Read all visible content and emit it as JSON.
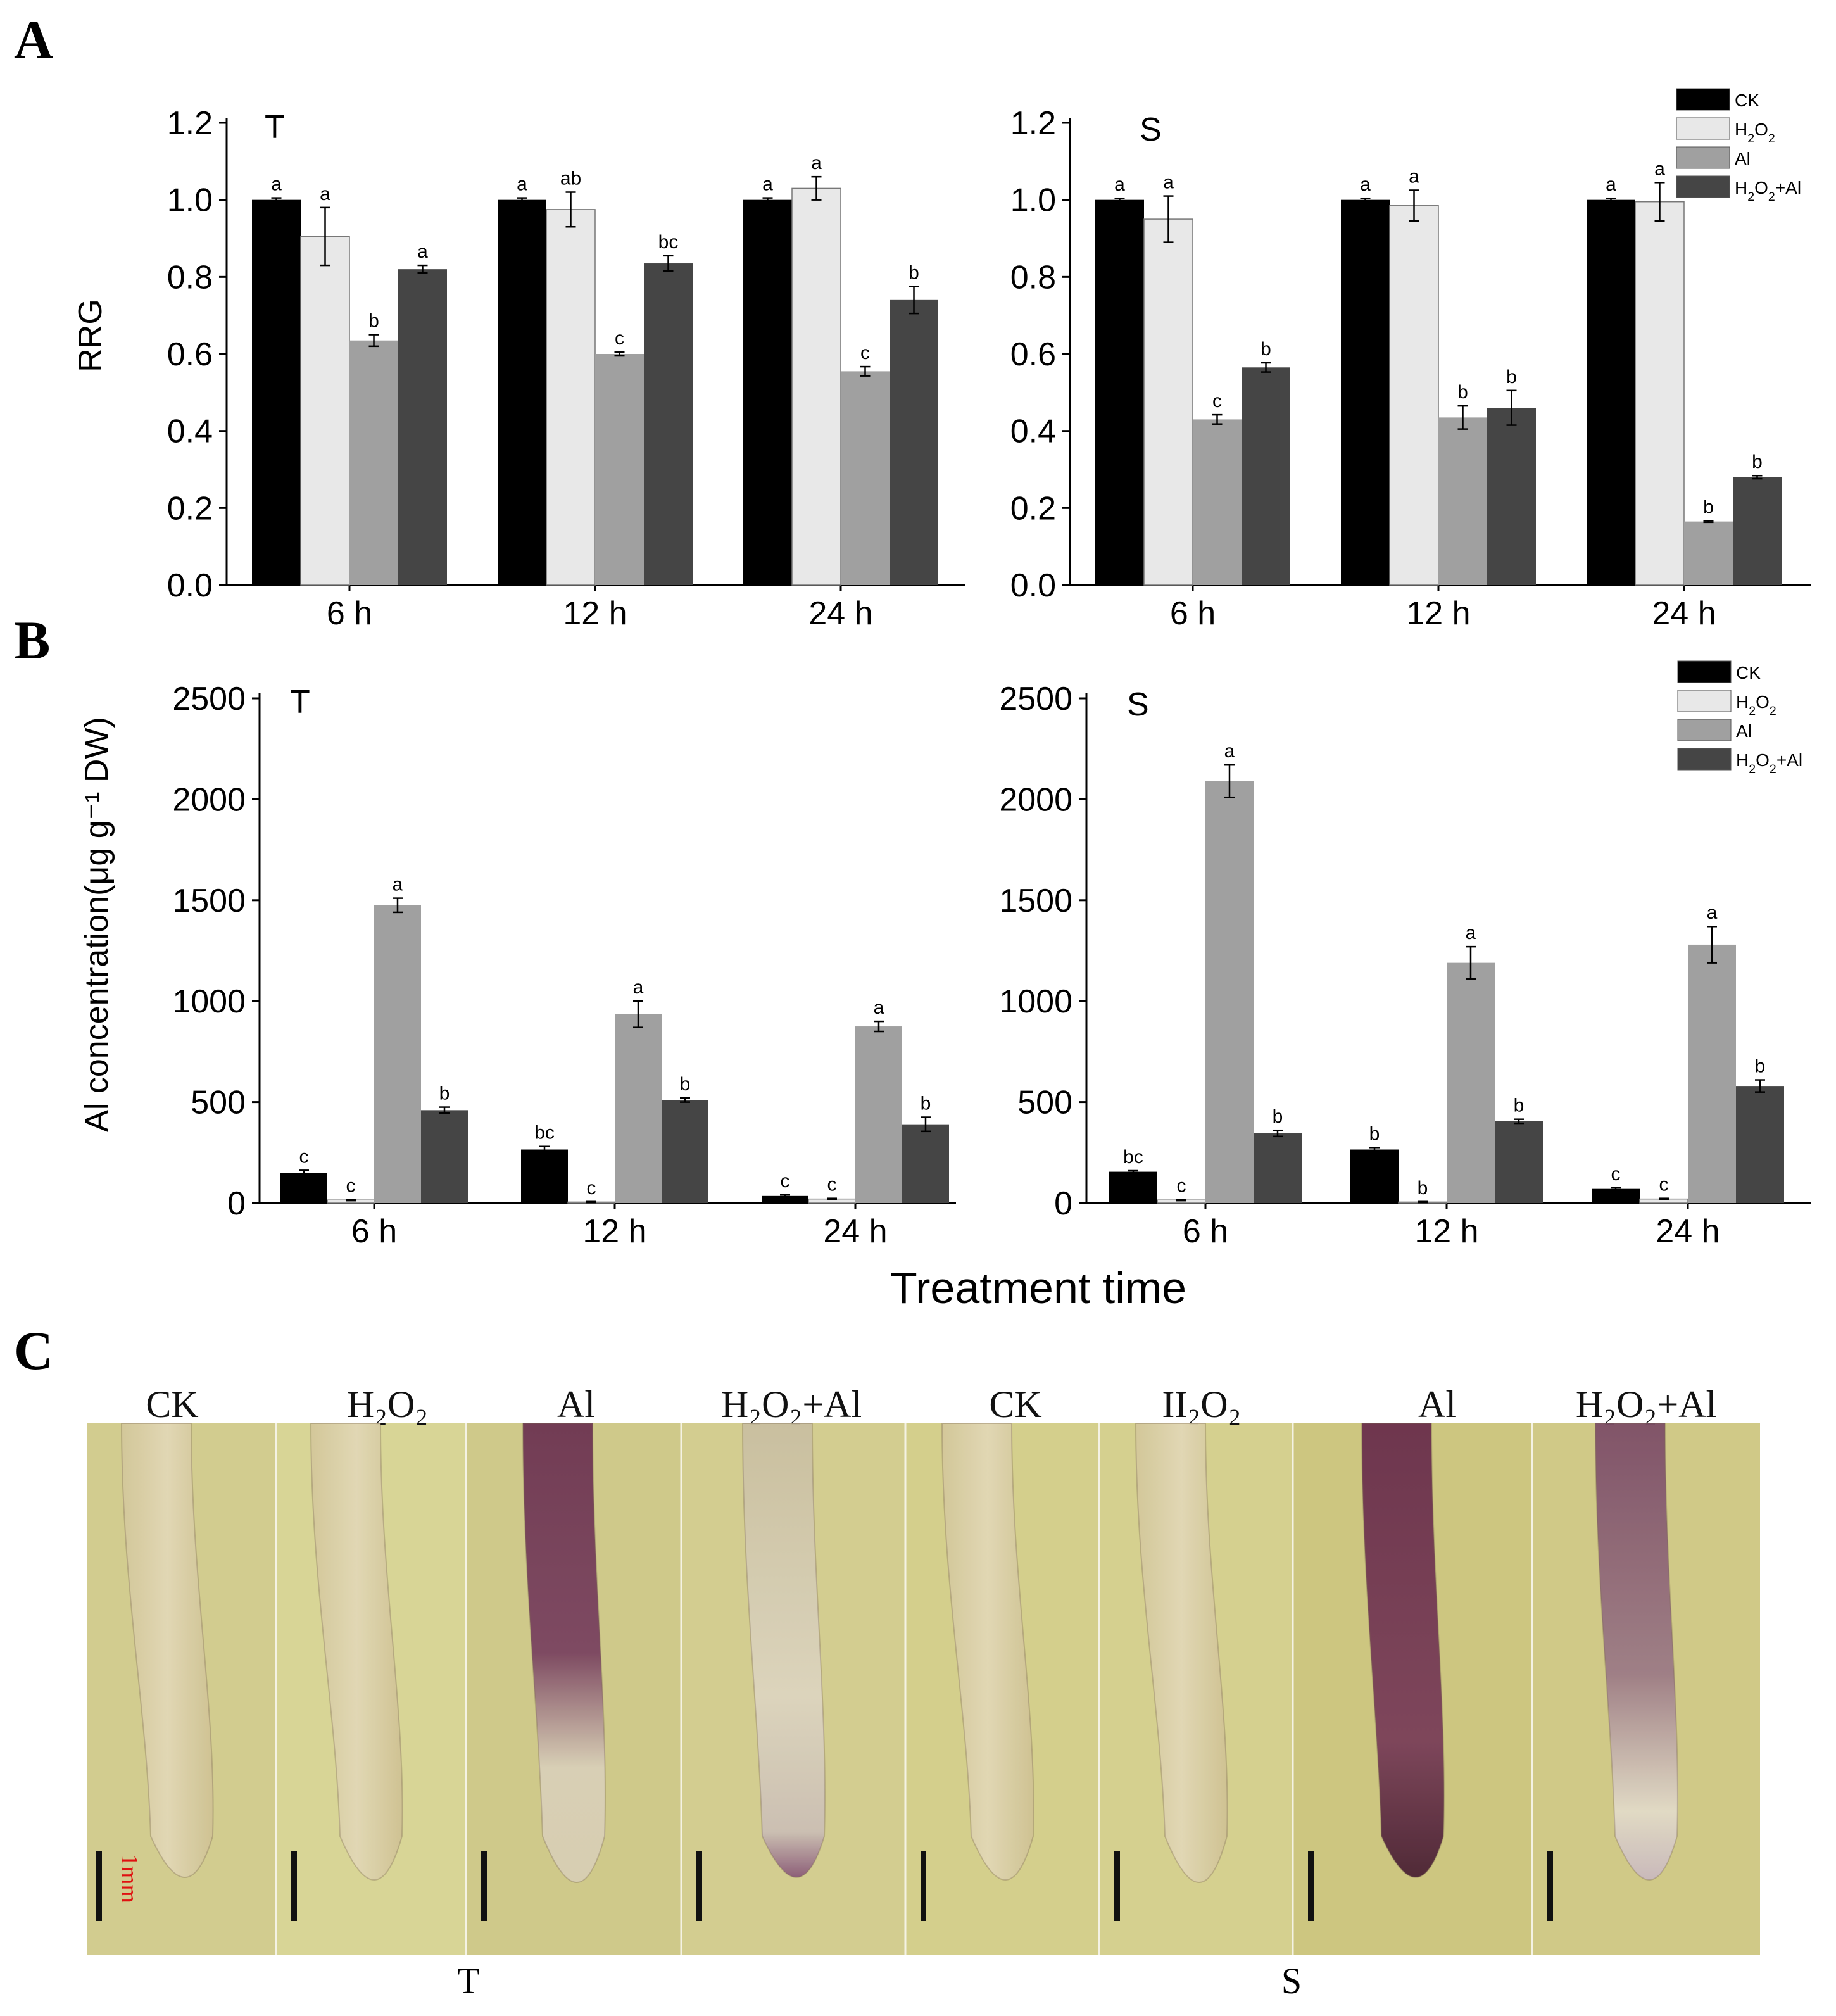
{
  "panel_letters": {
    "a": "A",
    "b": "B",
    "c": "C"
  },
  "shared_xlabel": "Treatment time",
  "legend_items": [
    {
      "key": "CK",
      "color": "#000000"
    },
    {
      "key": "H2O2",
      "color": "#e8e8e8"
    },
    {
      "key": "Al",
      "color": "#a0a0a0"
    },
    {
      "key": "H2O2+Al",
      "color": "#454545"
    }
  ],
  "chart_data": [
    {
      "id": "A-T",
      "type": "bar",
      "panel": "A",
      "title": "T",
      "ylabel": "RRG",
      "xlabel": "",
      "ylim": [
        0,
        1.2
      ],
      "yticks": [
        "0.0",
        "0.2",
        "0.4",
        "0.6",
        "0.8",
        "1.0",
        "1.2"
      ],
      "categories": [
        "6 h",
        "12 h",
        "24 h"
      ],
      "series": [
        {
          "name": "CK",
          "values": [
            1.0,
            1.0,
            1.0
          ],
          "errors": [
            0.005,
            0.005,
            0.005
          ],
          "letters": [
            "a",
            "a",
            "a"
          ]
        },
        {
          "name": "H2O2",
          "values": [
            0.905,
            0.975,
            1.03
          ],
          "errors": [
            0.075,
            0.045,
            0.03
          ],
          "letters": [
            "a",
            "ab",
            "a"
          ]
        },
        {
          "name": "Al",
          "values": [
            0.635,
            0.6,
            0.555
          ],
          "errors": [
            0.015,
            0.005,
            0.012
          ],
          "letters": [
            "b",
            "c",
            "c"
          ]
        },
        {
          "name": "H2O2+Al",
          "values": [
            0.82,
            0.835,
            0.74
          ],
          "errors": [
            0.01,
            0.02,
            0.035
          ],
          "letters": [
            "a",
            "bc",
            "b"
          ]
        }
      ]
    },
    {
      "id": "A-S",
      "type": "bar",
      "panel": "A",
      "title": "S",
      "ylabel": "",
      "xlabel": "",
      "ylim": [
        0,
        1.2
      ],
      "yticks": [
        "0.0",
        "0.2",
        "0.4",
        "0.6",
        "0.8",
        "1.0",
        "1.2"
      ],
      "categories": [
        "6 h",
        "12 h",
        "24 h"
      ],
      "series": [
        {
          "name": "CK",
          "values": [
            1.0,
            1.0,
            1.0
          ],
          "errors": [
            0.004,
            0.004,
            0.004
          ],
          "letters": [
            "a",
            "a",
            "a"
          ]
        },
        {
          "name": "H2O2",
          "values": [
            0.95,
            0.985,
            0.995
          ],
          "errors": [
            0.06,
            0.04,
            0.05
          ],
          "letters": [
            "a",
            "a",
            "a"
          ]
        },
        {
          "name": "Al",
          "values": [
            0.43,
            0.435,
            0.165
          ],
          "errors": [
            0.012,
            0.03,
            0.002
          ],
          "letters": [
            "c",
            "b",
            "b"
          ]
        },
        {
          "name": "H2O2+Al",
          "values": [
            0.565,
            0.46,
            0.28
          ],
          "errors": [
            0.012,
            0.045,
            0.004
          ],
          "letters": [
            "b",
            "b",
            "b"
          ]
        }
      ]
    },
    {
      "id": "B-T",
      "type": "bar",
      "panel": "B",
      "title": "T",
      "ylabel": "Al concentration(μg g⁻¹ DW)",
      "xlabel": "",
      "ylim": [
        0,
        2500
      ],
      "yticks": [
        "0",
        "500",
        "1000",
        "1500",
        "2000",
        "2500"
      ],
      "categories": [
        "6 h",
        "12 h",
        "24 h"
      ],
      "series": [
        {
          "name": "CK",
          "values": [
            150,
            265,
            35
          ],
          "errors": [
            12,
            15,
            5
          ],
          "letters": [
            "c",
            "bc",
            "c"
          ]
        },
        {
          "name": "H2O2",
          "values": [
            15,
            5,
            20
          ],
          "errors": [
            3,
            2,
            3
          ],
          "letters": [
            "c",
            "c",
            "c"
          ]
        },
        {
          "name": "Al",
          "values": [
            1475,
            935,
            875
          ],
          "errors": [
            35,
            65,
            25
          ],
          "letters": [
            "a",
            "a",
            "a"
          ]
        },
        {
          "name": "H2O2+Al",
          "values": [
            460,
            510,
            390
          ],
          "errors": [
            15,
            10,
            35
          ],
          "letters": [
            "b",
            "b",
            "b"
          ]
        }
      ]
    },
    {
      "id": "B-S",
      "type": "bar",
      "panel": "B",
      "title": "S",
      "ylabel": "",
      "xlabel": "",
      "ylim": [
        0,
        2500
      ],
      "yticks": [
        "0",
        "500",
        "1000",
        "1500",
        "2000",
        "2500"
      ],
      "categories": [
        "6 h",
        "12 h",
        "24 h"
      ],
      "series": [
        {
          "name": "CK",
          "values": [
            155,
            265,
            70
          ],
          "errors": [
            5,
            10,
            5
          ],
          "letters": [
            "bc",
            "b",
            "c"
          ]
        },
        {
          "name": "H2O2",
          "values": [
            15,
            5,
            20
          ],
          "errors": [
            3,
            2,
            3
          ],
          "letters": [
            "c",
            "b",
            "c"
          ]
        },
        {
          "name": "Al",
          "values": [
            2090,
            1190,
            1280
          ],
          "errors": [
            80,
            80,
            90
          ],
          "letters": [
            "a",
            "a",
            "a"
          ]
        },
        {
          "name": "H2O2+Al",
          "values": [
            345,
            405,
            580
          ],
          "errors": [
            15,
            10,
            30
          ],
          "letters": [
            "b",
            "b",
            "b"
          ]
        }
      ]
    }
  ],
  "panel_c": {
    "labels": [
      "CK",
      "H₂O₂",
      "Al",
      "H₂O₂+Al",
      "CK",
      "II₂O₂",
      "Al",
      "H₂O₂+Al"
    ],
    "cultivars": [
      "T",
      "S"
    ],
    "scale_label": "1mm",
    "stain": [
      "none",
      "none",
      "strong",
      "tip",
      "none",
      "none",
      "strong",
      "moderate"
    ]
  }
}
